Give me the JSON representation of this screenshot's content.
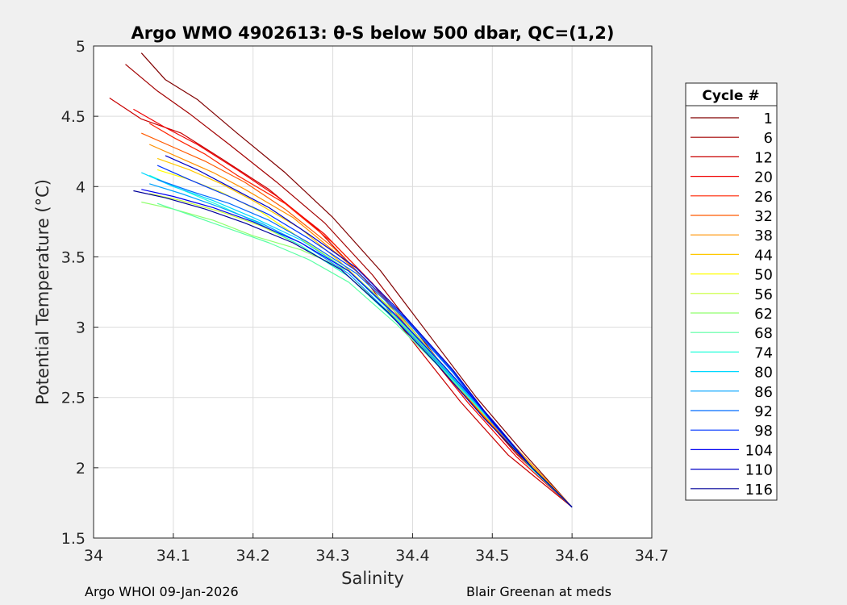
{
  "chart_data": {
    "type": "line",
    "title": "Argo WMO 4902613: θ-S below 500 dbar,  QC=(1,2)",
    "xlabel": "Salinity",
    "ylabel": "Potential Temperature (°C)",
    "xlim": [
      34.0,
      34.7
    ],
    "ylim": [
      1.5,
      5.0
    ],
    "x_ticks": [
      34.0,
      34.1,
      34.2,
      34.3,
      34.4,
      34.5,
      34.6,
      34.7
    ],
    "x_tick_labels": [
      "34",
      "34.1",
      "34.2",
      "34.3",
      "34.4",
      "34.5",
      "34.6",
      "34.7"
    ],
    "y_ticks": [
      1.5,
      2.0,
      2.5,
      3.0,
      3.5,
      4.0,
      4.5,
      5.0
    ],
    "y_tick_labels": [
      "1.5",
      "2",
      "2.5",
      "3",
      "3.5",
      "4",
      "4.5",
      "5"
    ],
    "grid": true,
    "legend_title": "Cycle #",
    "legend_position": "right",
    "colormap": "jet",
    "series": [
      {
        "name": "1",
        "color": "#800000",
        "x": [
          34.06,
          34.09,
          34.13,
          34.18,
          34.24,
          34.3,
          34.36,
          34.42,
          34.48,
          34.54,
          34.6
        ],
        "y": [
          4.95,
          4.76,
          4.62,
          4.38,
          4.1,
          3.78,
          3.4,
          2.95,
          2.5,
          2.1,
          1.72
        ]
      },
      {
        "name": "6",
        "color": "#a30000",
        "x": [
          34.04,
          34.08,
          34.12,
          34.17,
          34.23,
          34.29,
          34.35,
          34.41,
          34.47,
          34.53,
          34.6
        ],
        "y": [
          4.87,
          4.68,
          4.52,
          4.3,
          4.03,
          3.74,
          3.37,
          2.93,
          2.49,
          2.1,
          1.72
        ]
      },
      {
        "name": "12",
        "color": "#c80000",
        "x": [
          34.02,
          34.06,
          34.11,
          34.16,
          34.22,
          34.28,
          34.34,
          34.4,
          34.46,
          34.52,
          34.6
        ],
        "y": [
          4.63,
          4.48,
          4.38,
          4.2,
          3.98,
          3.7,
          3.34,
          2.9,
          2.47,
          2.09,
          1.72
        ]
      },
      {
        "name": "20",
        "color": "#f00000",
        "x": [
          34.05,
          34.09,
          34.13,
          34.18,
          34.23,
          34.29,
          34.35,
          34.41,
          34.47,
          34.53,
          34.6
        ],
        "y": [
          4.55,
          4.42,
          4.3,
          4.12,
          3.93,
          3.66,
          3.31,
          2.88,
          2.46,
          2.08,
          1.72
        ]
      },
      {
        "name": "26",
        "color": "#ff2400",
        "x": [
          34.07,
          34.1,
          34.14,
          34.18,
          34.24,
          34.3,
          34.36,
          34.42,
          34.48,
          34.54,
          34.6
        ],
        "y": [
          4.45,
          4.35,
          4.23,
          4.08,
          3.88,
          3.6,
          3.25,
          2.84,
          2.43,
          2.06,
          1.72
        ]
      },
      {
        "name": "32",
        "color": "#ff5a00",
        "x": [
          34.06,
          34.1,
          34.14,
          34.19,
          34.24,
          34.3,
          34.36,
          34.42,
          34.48,
          34.54,
          34.6
        ],
        "y": [
          4.38,
          4.28,
          4.18,
          4.03,
          3.84,
          3.57,
          3.23,
          2.82,
          2.42,
          2.05,
          1.72
        ]
      },
      {
        "name": "38",
        "color": "#ff9000",
        "x": [
          34.07,
          34.11,
          34.15,
          34.19,
          34.25,
          34.31,
          34.37,
          34.43,
          34.49,
          34.55,
          34.6
        ],
        "y": [
          4.3,
          4.2,
          4.1,
          3.98,
          3.78,
          3.5,
          3.18,
          2.78,
          2.38,
          2.02,
          1.72
        ]
      },
      {
        "name": "44",
        "color": "#ffc800",
        "x": [
          34.08,
          34.12,
          34.16,
          34.2,
          34.26,
          34.31,
          34.37,
          34.43,
          34.49,
          34.55,
          34.6
        ],
        "y": [
          4.2,
          4.12,
          4.02,
          3.9,
          3.7,
          3.46,
          3.14,
          2.76,
          2.37,
          2.01,
          1.72
        ]
      },
      {
        "name": "50",
        "color": "#ffff00",
        "x": [
          34.08,
          34.12,
          34.16,
          34.21,
          34.26,
          34.32,
          34.38,
          34.44,
          34.5,
          34.55,
          34.6
        ],
        "y": [
          4.12,
          4.05,
          3.96,
          3.82,
          3.63,
          3.4,
          3.08,
          2.72,
          2.34,
          2.0,
          1.72
        ]
      },
      {
        "name": "56",
        "color": "#c8ff36",
        "x": [
          34.07,
          34.11,
          34.16,
          34.21,
          34.26,
          34.32,
          34.38,
          34.44,
          34.5,
          34.55,
          34.6
        ],
        "y": [
          3.95,
          3.9,
          3.82,
          3.72,
          3.58,
          3.36,
          3.06,
          2.7,
          2.33,
          1.99,
          1.72
        ]
      },
      {
        "name": "62",
        "color": "#90ff6e",
        "x": [
          34.06,
          34.1,
          34.15,
          34.2,
          34.26,
          34.32,
          34.38,
          34.44,
          34.5,
          34.55,
          34.6
        ],
        "y": [
          3.89,
          3.84,
          3.76,
          3.65,
          3.55,
          3.4,
          3.1,
          2.72,
          2.34,
          2.0,
          1.72
        ]
      },
      {
        "name": "68",
        "color": "#5affa4",
        "x": [
          34.08,
          34.12,
          34.17,
          34.22,
          34.27,
          34.32,
          34.38,
          34.44,
          34.5,
          34.55,
          34.6
        ],
        "y": [
          3.88,
          3.8,
          3.7,
          3.6,
          3.48,
          3.32,
          3.02,
          2.68,
          2.32,
          1.99,
          1.72
        ]
      },
      {
        "name": "74",
        "color": "#24ffda",
        "x": [
          34.07,
          34.11,
          34.16,
          34.21,
          34.26,
          34.32,
          34.38,
          34.44,
          34.5,
          34.55,
          34.6
        ],
        "y": [
          4.08,
          3.98,
          3.86,
          3.73,
          3.58,
          3.36,
          3.04,
          2.69,
          2.32,
          1.99,
          1.72
        ]
      },
      {
        "name": "80",
        "color": "#00d8ff",
        "x": [
          34.06,
          34.1,
          34.15,
          34.2,
          34.26,
          34.32,
          34.38,
          34.44,
          34.5,
          34.55,
          34.6
        ],
        "y": [
          4.1,
          4.0,
          3.9,
          3.78,
          3.62,
          3.4,
          3.07,
          2.71,
          2.33,
          2.0,
          1.72
        ]
      },
      {
        "name": "86",
        "color": "#00a2ff",
        "x": [
          34.07,
          34.11,
          34.16,
          34.21,
          34.26,
          34.32,
          34.38,
          34.44,
          34.5,
          34.55,
          34.6
        ],
        "y": [
          4.02,
          3.95,
          3.85,
          3.74,
          3.6,
          3.38,
          3.05,
          2.7,
          2.33,
          2.0,
          1.72
        ]
      },
      {
        "name": "92",
        "color": "#006cff",
        "x": [
          34.08,
          34.12,
          34.17,
          34.22,
          34.27,
          34.33,
          34.39,
          34.45,
          34.5,
          34.55,
          34.6
        ],
        "y": [
          4.05,
          3.97,
          3.88,
          3.76,
          3.6,
          3.38,
          3.06,
          2.68,
          2.32,
          2.0,
          1.72
        ]
      },
      {
        "name": "98",
        "color": "#0036ff",
        "x": [
          34.08,
          34.12,
          34.17,
          34.22,
          34.27,
          34.33,
          34.39,
          34.45,
          34.5,
          34.55,
          34.6
        ],
        "y": [
          4.15,
          4.05,
          3.93,
          3.8,
          3.63,
          3.4,
          3.07,
          2.69,
          2.32,
          2.0,
          1.72
        ]
      },
      {
        "name": "104",
        "color": "#0000f2",
        "x": [
          34.06,
          34.1,
          34.15,
          34.2,
          34.26,
          34.32,
          34.38,
          34.44,
          34.5,
          34.55,
          34.6
        ],
        "y": [
          3.98,
          3.93,
          3.85,
          3.75,
          3.6,
          3.4,
          3.08,
          2.72,
          2.34,
          2.0,
          1.72
        ]
      },
      {
        "name": "110",
        "color": "#0000c6",
        "x": [
          34.09,
          34.13,
          34.17,
          34.22,
          34.27,
          34.33,
          34.39,
          34.45,
          34.5,
          34.55,
          34.6
        ],
        "y": [
          4.22,
          4.12,
          4.0,
          3.85,
          3.66,
          3.42,
          3.08,
          2.7,
          2.33,
          2.0,
          1.72
        ]
      },
      {
        "name": "116",
        "color": "#00009a",
        "x": [
          34.05,
          34.09,
          34.14,
          34.19,
          34.25,
          34.31,
          34.37,
          34.43,
          34.49,
          34.55,
          34.6
        ],
        "y": [
          3.97,
          3.92,
          3.84,
          3.74,
          3.6,
          3.41,
          3.1,
          2.74,
          2.35,
          2.0,
          1.72
        ]
      }
    ]
  },
  "footer": {
    "left": "Argo WHOI 09-Jan-2026",
    "right": "Blair Greenan at meds"
  }
}
